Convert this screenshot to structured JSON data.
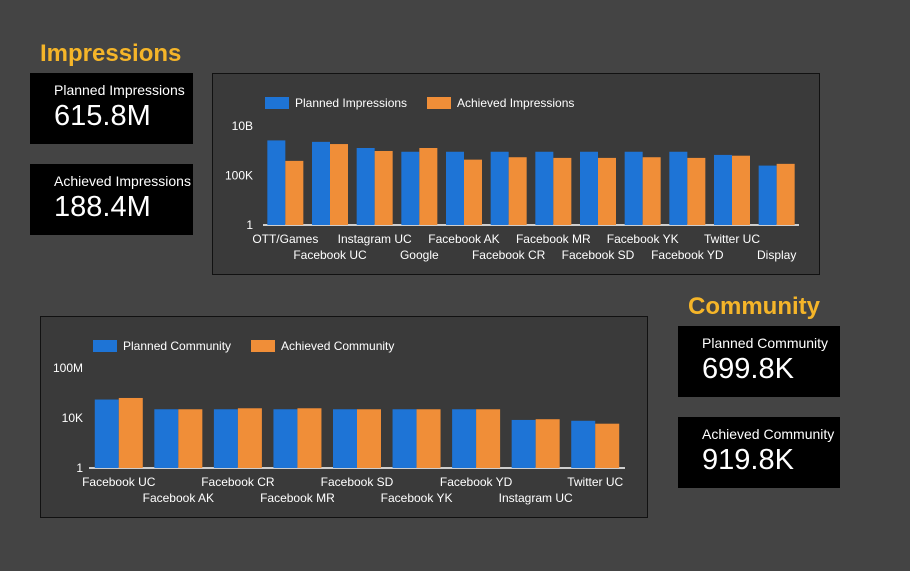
{
  "colors": {
    "background": "#444444",
    "panel": "#3a3a3a",
    "kpi_bg": "#000000",
    "title": "#f5b529",
    "planned": "#1e74d6",
    "achieved": "#f08e38",
    "text": "#ffffff"
  },
  "impressions": {
    "title": "Impressions",
    "planned_label": "Planned Impressions",
    "planned_value": "615.8M",
    "achieved_label": "Achieved Impressions",
    "achieved_value": "188.4M"
  },
  "community": {
    "title": "Community",
    "planned_label": "Planned Community",
    "planned_value": "699.8K",
    "achieved_label": "Achieved Community",
    "achieved_value": "919.8K"
  },
  "chart_data": [
    {
      "type": "bar",
      "yscale": "log",
      "ylim": [
        1,
        10000000000
      ],
      "yticks": [
        "1",
        "100K",
        "10B"
      ],
      "legend_position": "top-left",
      "grid": false,
      "categories": [
        "OTT/Games",
        "Facebook UC",
        "Instagram UC",
        "Google",
        "Facebook AK",
        "Facebook CR",
        "Facebook MR",
        "Facebook SD",
        "Facebook YK",
        "Facebook YD",
        "Twitter UC",
        "Display"
      ],
      "series": [
        {
          "name": "Planned Impressions",
          "values": [
            350000000,
            250000000,
            60000000,
            25000000,
            25000000,
            25000000,
            25000000,
            25000000,
            25000000,
            25000000,
            12000000,
            1000000
          ]
        },
        {
          "name": "Achieved Impressions",
          "values": [
            3000000,
            150000000,
            30000000,
            60000000,
            4000000,
            7000000,
            6000000,
            6000000,
            7000000,
            6000000,
            10000000,
            1500000
          ]
        }
      ]
    },
    {
      "type": "bar",
      "yscale": "log",
      "ylim": [
        1,
        100000000
      ],
      "yticks": [
        "1",
        "10K",
        "100M"
      ],
      "legend_position": "top-left",
      "grid": false,
      "categories": [
        "Facebook UC",
        "Facebook AK",
        "Facebook CR",
        "Facebook MR",
        "Facebook SD",
        "Facebook YK",
        "Facebook YD",
        "Instagram UC",
        "Twitter UC"
      ],
      "series": [
        {
          "name": "Planned Community",
          "values": [
            300000,
            50000,
            50000,
            50000,
            50000,
            50000,
            50000,
            7000,
            6000
          ]
        },
        {
          "name": "Achieved Community",
          "values": [
            400000,
            50000,
            60000,
            60000,
            50000,
            50000,
            50000,
            8000,
            3500
          ]
        }
      ]
    }
  ]
}
